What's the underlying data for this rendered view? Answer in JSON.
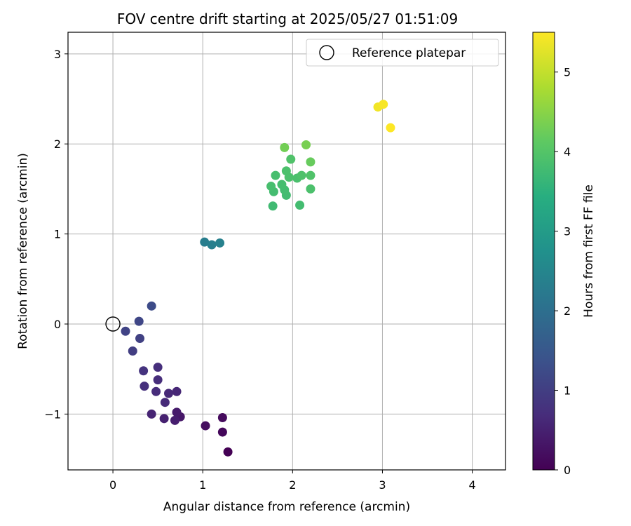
{
  "chart_data": {
    "type": "scatter",
    "title": "FOV centre drift starting at 2025/05/27 01:51:09",
    "xlabel": "Angular distance from reference (arcmin)",
    "ylabel": "Rotation from reference (arcmin)",
    "xlim": [
      -0.5,
      4.37
    ],
    "ylim": [
      -1.62,
      3.24
    ],
    "x_ticks": [
      0,
      1,
      2,
      3,
      4
    ],
    "x_tick_labels": [
      "0",
      "1",
      "2",
      "3",
      "4"
    ],
    "y_ticks": [
      -1,
      0,
      1,
      2,
      3
    ],
    "y_tick_labels": [
      "−1",
      "0",
      "1",
      "2",
      "3"
    ],
    "grid": true,
    "legend": {
      "placement": "top-right",
      "entries": [
        "Reference platepar"
      ]
    },
    "reference_point": {
      "x": 0,
      "y": 0
    },
    "colorbar": {
      "label": "Hours from first FF file",
      "colormap": "viridis",
      "range": [
        0,
        5.5
      ],
      "ticks": [
        0,
        1,
        2,
        3,
        4,
        5
      ],
      "tick_labels": [
        "0",
        "1",
        "2",
        "3",
        "4",
        "5"
      ]
    },
    "series": [
      {
        "points": [
          {
            "x": 1.28,
            "y": -1.42,
            "c": 0.0
          },
          {
            "x": 1.22,
            "y": -1.2,
            "c": 0.1
          },
          {
            "x": 1.22,
            "y": -1.04,
            "c": 0.15
          },
          {
            "x": 1.03,
            "y": -1.13,
            "c": 0.2
          },
          {
            "x": 0.75,
            "y": -1.03,
            "c": 0.35
          },
          {
            "x": 0.71,
            "y": -0.98,
            "c": 0.4
          },
          {
            "x": 0.69,
            "y": -1.07,
            "c": 0.45
          },
          {
            "x": 0.57,
            "y": -1.05,
            "c": 0.5
          },
          {
            "x": 0.43,
            "y": -1.0,
            "c": 0.55
          },
          {
            "x": 0.71,
            "y": -0.75,
            "c": 0.6
          },
          {
            "x": 0.62,
            "y": -0.77,
            "c": 0.62
          },
          {
            "x": 0.58,
            "y": -0.87,
            "c": 0.65
          },
          {
            "x": 0.48,
            "y": -0.75,
            "c": 0.68
          },
          {
            "x": 0.5,
            "y": -0.62,
            "c": 0.7
          },
          {
            "x": 0.5,
            "y": -0.48,
            "c": 0.72
          },
          {
            "x": 0.35,
            "y": -0.69,
            "c": 0.75
          },
          {
            "x": 0.34,
            "y": -0.52,
            "c": 0.8
          },
          {
            "x": 0.22,
            "y": -0.3,
            "c": 1.0
          },
          {
            "x": 0.3,
            "y": -0.16,
            "c": 1.05
          },
          {
            "x": 0.14,
            "y": -0.08,
            "c": 1.1
          },
          {
            "x": 0.29,
            "y": 0.03,
            "c": 1.15
          },
          {
            "x": 0.43,
            "y": 0.2,
            "c": 1.25
          },
          {
            "x": 1.02,
            "y": 0.91,
            "c": 2.3
          },
          {
            "x": 1.1,
            "y": 0.88,
            "c": 2.35
          },
          {
            "x": 1.19,
            "y": 0.9,
            "c": 2.4
          },
          {
            "x": 1.78,
            "y": 1.31,
            "c": 3.75
          },
          {
            "x": 2.08,
            "y": 1.32,
            "c": 3.8
          },
          {
            "x": 1.93,
            "y": 1.43,
            "c": 3.78
          },
          {
            "x": 1.79,
            "y": 1.47,
            "c": 3.8
          },
          {
            "x": 1.91,
            "y": 1.49,
            "c": 3.8
          },
          {
            "x": 2.2,
            "y": 1.5,
            "c": 3.9
          },
          {
            "x": 1.76,
            "y": 1.53,
            "c": 3.85
          },
          {
            "x": 1.88,
            "y": 1.55,
            "c": 3.82
          },
          {
            "x": 2.05,
            "y": 1.62,
            "c": 3.88
          },
          {
            "x": 1.96,
            "y": 1.63,
            "c": 3.9
          },
          {
            "x": 1.81,
            "y": 1.65,
            "c": 3.85
          },
          {
            "x": 2.1,
            "y": 1.65,
            "c": 3.92
          },
          {
            "x": 2.2,
            "y": 1.65,
            "c": 3.95
          },
          {
            "x": 1.93,
            "y": 1.7,
            "c": 3.9
          },
          {
            "x": 2.2,
            "y": 1.8,
            "c": 4.2
          },
          {
            "x": 1.98,
            "y": 1.83,
            "c": 3.95
          },
          {
            "x": 1.91,
            "y": 1.96,
            "c": 4.3
          },
          {
            "x": 2.15,
            "y": 1.99,
            "c": 4.35
          },
          {
            "x": 2.95,
            "y": 2.41,
            "c": 5.4
          },
          {
            "x": 3.01,
            "y": 2.44,
            "c": 5.45
          },
          {
            "x": 3.09,
            "y": 2.18,
            "c": 5.5
          }
        ]
      }
    ]
  }
}
